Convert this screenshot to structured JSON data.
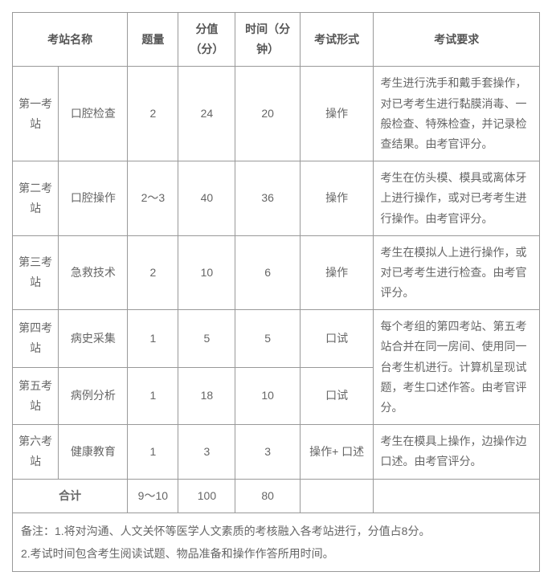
{
  "headers": {
    "station": "考站名称",
    "qty": "题量",
    "score": "分值（分）",
    "time": "时间（分钟）",
    "format": "考试形式",
    "req": "考试要求"
  },
  "rows": [
    {
      "station": "第一考站",
      "name": "口腔检查",
      "qty": "2",
      "score": "24",
      "time": "20",
      "format": "操作",
      "req": "考生进行洗手和戴手套操作，对已考考生进行黏膜消毒、一般检查、特殊检查，并记录检查结果。由考官评分。"
    },
    {
      "station": "第二考站",
      "name": "口腔操作",
      "qty": "2～3",
      "score": "40",
      "time": "36",
      "format": "操作",
      "req": "考生在仿头模、模具或离体牙上进行操作，或对已考考生进行操作。由考官评分。"
    },
    {
      "station": "第三考站",
      "name": "急救技术",
      "qty": "2",
      "score": "10",
      "time": "6",
      "format": "操作",
      "req": "考生在模拟人上进行操作，或对已考考生进行检查。由考官评分。"
    },
    {
      "station": "第四考站",
      "name": "病史采集",
      "qty": "1",
      "score": "5",
      "time": "5",
      "format": "口试",
      "req": "每个考组的第四考站、第五考站合并在同一房间、使用同一台考生机进行。计算机呈现试题，考生口述作答。由考官评分。"
    },
    {
      "station": "第五考站",
      "name": "病例分析",
      "qty": "1",
      "score": "18",
      "time": "10",
      "format": "口试",
      "req": null
    },
    {
      "station": "第六考站",
      "name": "健康教育",
      "qty": "1",
      "score": "3",
      "time": "3",
      "format": "操作+ 口述",
      "req": "考生在模具上操作，边操作边口述。由考官评分。"
    }
  ],
  "total": {
    "label": "合计",
    "qty": "9～10",
    "score": "100",
    "time": "80"
  },
  "notes": {
    "line1": "备注：1.将对沟通、人文关怀等医学人文素质的考核融入各考站进行，分值占8分。",
    "line2": "2.考试时间包含考生阅读试题、物品准备和操作作答所用时间。"
  }
}
